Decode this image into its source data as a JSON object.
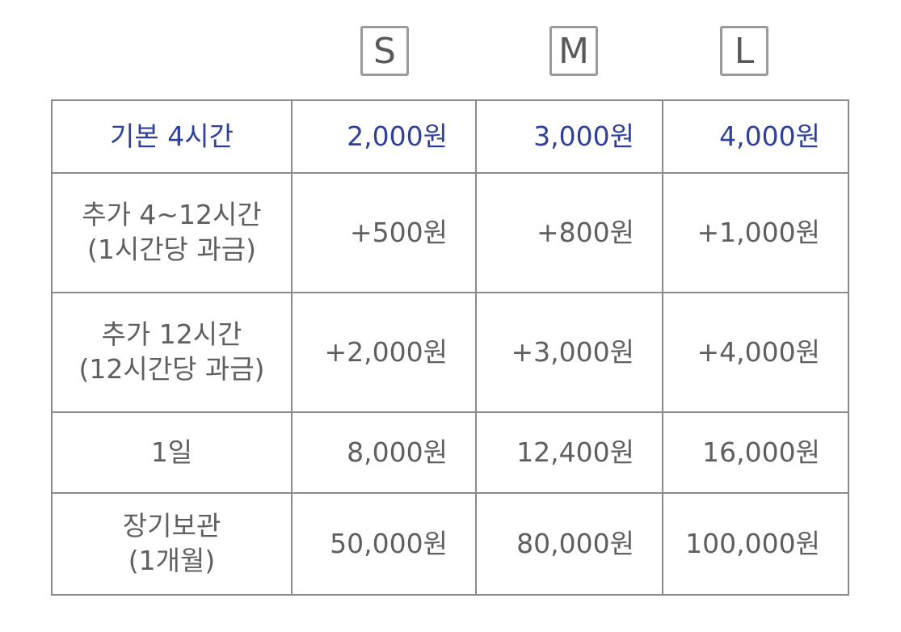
{
  "sizes": [
    "S",
    "M",
    "L"
  ],
  "rows": [
    {
      "label": [
        "기본 4시간"
      ],
      "values": [
        "2,000원",
        "3,000원",
        "4,000원"
      ]
    },
    {
      "label": [
        "추가 4~12시간",
        "(1시간당 과금)"
      ],
      "values": [
        "+500원",
        "+800원",
        "+1,000원"
      ]
    },
    {
      "label": [
        "추가 12시간",
        "(12시간당 과금)"
      ],
      "values": [
        "+2,000원",
        "+3,000원",
        "+4,000원"
      ]
    },
    {
      "label": [
        "1일"
      ],
      "values": [
        "8,000원",
        "12,400원",
        "16,000원"
      ]
    },
    {
      "label": [
        "장기보관",
        "(1개월)"
      ],
      "values": [
        "50,000원",
        "80,000원",
        "100,000원"
      ]
    }
  ],
  "colors": {
    "highlight_text": "#2f3f9a",
    "body_text": "#5f5f5f",
    "border": "#8a8a8a"
  }
}
